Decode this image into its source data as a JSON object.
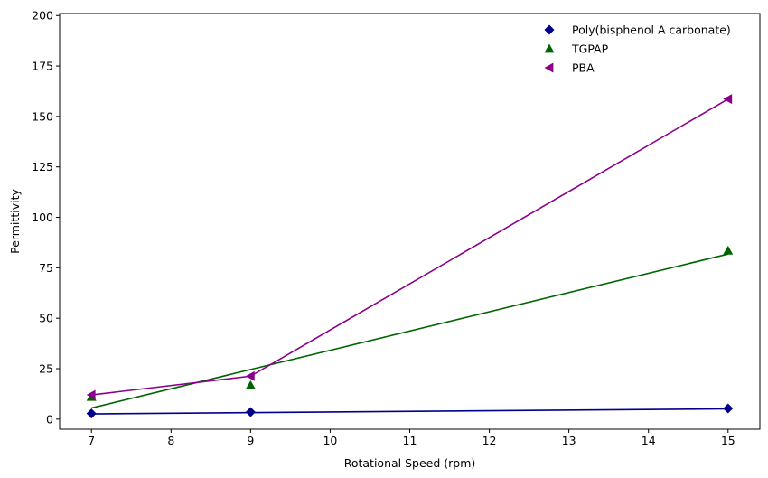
{
  "chart_data": {
    "type": "scatter",
    "title": "",
    "xlabel": "Rotational Speed (rpm)",
    "ylabel": "Permittivity",
    "xlim": [
      6.6,
      15.4
    ],
    "ylim": [
      -5,
      201
    ],
    "xticks": [
      7,
      8,
      9,
      10,
      11,
      12,
      13,
      14,
      15
    ],
    "yticks": [
      0,
      25,
      50,
      75,
      100,
      125,
      150,
      175,
      200
    ],
    "grid": false,
    "legend_position": "top-right",
    "series": [
      {
        "name": "Poly(bisphenol A carbonate)",
        "marker": "diamond",
        "color": "#00008b",
        "points": [
          [
            7,
            2.8
          ],
          [
            9,
            3.5
          ],
          [
            15,
            5.3
          ]
        ],
        "fit_line": [
          [
            7,
            2.6
          ],
          [
            15,
            5.1
          ]
        ]
      },
      {
        "name": "TGPAP",
        "marker": "triangle-up",
        "color": "#006400",
        "points": [
          [
            7,
            11.0
          ],
          [
            9,
            16.8
          ],
          [
            15,
            83.5
          ]
        ],
        "fit_line": [
          [
            7,
            5.5
          ],
          [
            15,
            81.8
          ]
        ]
      },
      {
        "name": "PBA",
        "marker": "triangle-left",
        "color": "#8b008b",
        "points": [
          [
            7,
            12.0
          ],
          [
            9,
            21.3
          ],
          [
            15,
            158.6
          ]
        ],
        "fit_line": [
          [
            7,
            12.0
          ],
          [
            9,
            21.3
          ],
          [
            15,
            158.6
          ]
        ]
      }
    ]
  }
}
